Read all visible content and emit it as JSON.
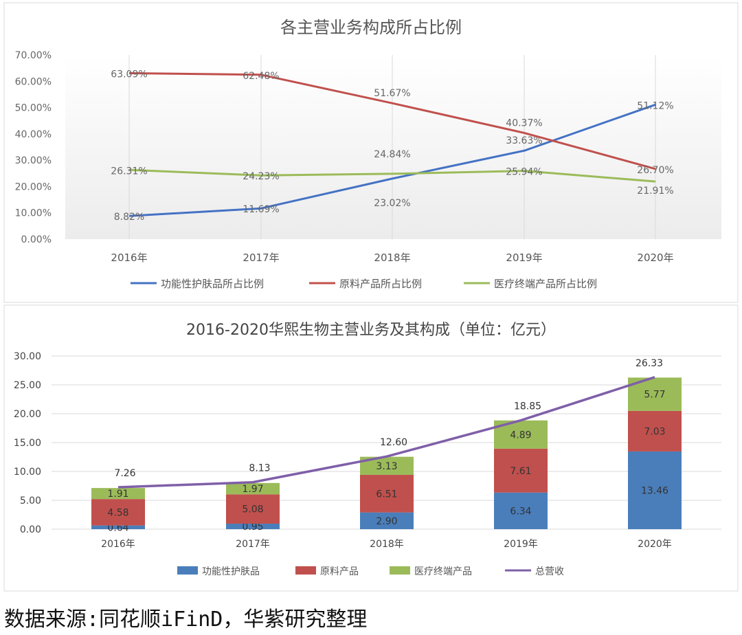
{
  "chart_data": [
    {
      "type": "line",
      "title": "各主营业务构成所占比例",
      "categories": [
        "2016年",
        "2017年",
        "2018年",
        "2019年",
        "2020年"
      ],
      "yticks": [
        "0.00%",
        "10.00%",
        "20.00%",
        "30.00%",
        "40.00%",
        "50.00%",
        "60.00%",
        "70.00%"
      ],
      "ylim": [
        0,
        70
      ],
      "legend": "bottom",
      "series": [
        {
          "name": "功能性护肤品所占比例",
          "color": "#4472c4",
          "values": [
            8.82,
            11.69,
            23.02,
            33.63,
            51.12
          ],
          "labels": [
            "8.82%",
            "11.69%",
            "23.02%",
            "33.63%",
            "51.12%"
          ]
        },
        {
          "name": "原料产品所占比例",
          "color": "#c0504d",
          "values": [
            63.09,
            62.48,
            51.67,
            40.37,
            26.7
          ],
          "labels": [
            "63.09%",
            "62.48%",
            "51.67%",
            "40.37%",
            "26.70%"
          ]
        },
        {
          "name": "医疗终端产品所占比例",
          "color": "#9bbb59",
          "values": [
            26.31,
            24.23,
            24.84,
            25.94,
            21.91
          ],
          "labels": [
            "26.31%",
            "24.23%",
            "24.84%",
            "25.94%",
            "21.91%"
          ]
        }
      ]
    },
    {
      "type": "bar",
      "stacked": true,
      "title": "2016-2020华熙生物主营业务及其构成（单位：亿元）",
      "categories": [
        "2016年",
        "2017年",
        "2018年",
        "2019年",
        "2020年"
      ],
      "yticks": [
        "0.00",
        "5.00",
        "10.00",
        "15.00",
        "20.00",
        "25.00",
        "30.00"
      ],
      "ylim": [
        0,
        30
      ],
      "legend": "bottom",
      "series": [
        {
          "name": "功能性护肤品",
          "color": "#4a7ebb",
          "values": [
            0.64,
            0.95,
            2.9,
            6.34,
            13.46
          ],
          "labels": [
            "0.64",
            "0.95",
            "2.90",
            "6.34",
            "13.46"
          ]
        },
        {
          "name": "原料产品",
          "color": "#c0504d",
          "values": [
            4.58,
            5.08,
            6.51,
            7.61,
            7.03
          ],
          "labels": [
            "4.58",
            "5.08",
            "6.51",
            "7.61",
            "7.03"
          ]
        },
        {
          "name": "医疗终端产品",
          "color": "#9bbb59",
          "values": [
            1.91,
            1.97,
            3.13,
            4.89,
            5.77
          ],
          "labels": [
            "1.91",
            "1.97",
            "3.13",
            "4.89",
            "5.77"
          ]
        }
      ],
      "line": {
        "name": "总营收",
        "color": "#7f5fa8",
        "values": [
          7.26,
          8.13,
          12.6,
          18.85,
          26.33
        ],
        "labels": [
          "7.26",
          "8.13",
          "12.60",
          "18.85",
          "26.33"
        ]
      }
    }
  ],
  "caption": "数据来源:同花顺iFinD，华紫研究整理"
}
